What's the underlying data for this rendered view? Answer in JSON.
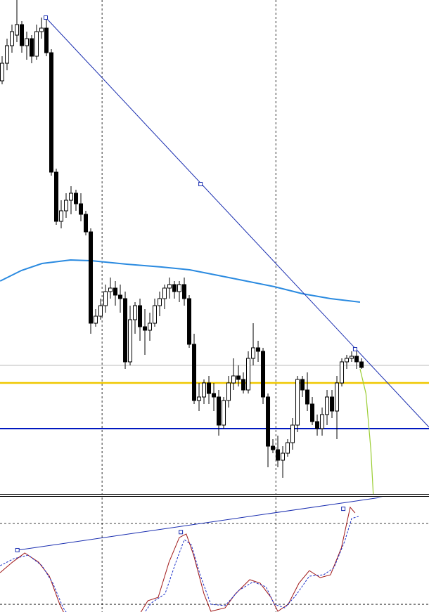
{
  "chart_data": [
    {
      "type": "candlestick",
      "xlim": [
        -0.43,
        86.71
      ],
      "ylim": [
        0,
        705
      ],
      "open": [
        590,
        615,
        640,
        655,
        670,
        640,
        650,
        625,
        660,
        665,
        630,
        460,
        390,
        405,
        420,
        430,
        415,
        400,
        375,
        245,
        255,
        270,
        290,
        295,
        285,
        280,
        190,
        250,
        270,
        240,
        235,
        245,
        270,
        280,
        295,
        300,
        290,
        300,
        280,
        215,
        135,
        140,
        160,
        145,
        140,
        100,
        135,
        160,
        170,
        165,
        150,
        195,
        210,
        205,
        140,
        70,
        65,
        50,
        60,
        75,
        100,
        165,
        150,
        130,
        105,
        95,
        115,
        140,
        120,
        160,
        190,
        195,
        198,
        190
      ],
      "high": [
        625,
        650,
        670,
        705,
        675,
        660,
        655,
        670,
        680,
        680,
        635,
        465,
        420,
        430,
        440,
        435,
        430,
        405,
        380,
        265,
        280,
        300,
        310,
        305,
        300,
        290,
        270,
        275,
        280,
        265,
        260,
        280,
        290,
        300,
        310,
        305,
        305,
        310,
        285,
        230,
        160,
        165,
        170,
        160,
        150,
        140,
        170,
        195,
        185,
        175,
        205,
        245,
        220,
        210,
        145,
        80,
        85,
        70,
        80,
        110,
        170,
        170,
        175,
        140,
        115,
        125,
        150,
        150,
        170,
        195,
        200,
        205,
        210,
        195
      ],
      "low": [
        585,
        605,
        630,
        645,
        630,
        620,
        615,
        620,
        650,
        625,
        455,
        385,
        380,
        395,
        400,
        405,
        390,
        370,
        230,
        240,
        250,
        260,
        280,
        270,
        260,
        180,
        185,
        230,
        220,
        200,
        220,
        240,
        255,
        265,
        280,
        280,
        275,
        270,
        210,
        130,
        120,
        130,
        130,
        120,
        85,
        95,
        125,
        150,
        155,
        145,
        145,
        185,
        190,
        130,
        40,
        60,
        40,
        25,
        55,
        65,
        90,
        140,
        120,
        100,
        85,
        85,
        100,
        110,
        80,
        155,
        180,
        190,
        180,
        180
      ],
      "close": [
        615,
        640,
        660,
        670,
        640,
        650,
        625,
        660,
        665,
        630,
        460,
        390,
        405,
        420,
        430,
        415,
        400,
        375,
        245,
        255,
        270,
        290,
        295,
        285,
        280,
        190,
        250,
        270,
        240,
        235,
        245,
        270,
        280,
        295,
        300,
        290,
        300,
        280,
        215,
        135,
        140,
        160,
        145,
        140,
        100,
        135,
        160,
        170,
        165,
        150,
        195,
        210,
        205,
        140,
        70,
        65,
        50,
        60,
        75,
        100,
        165,
        150,
        130,
        105,
        95,
        115,
        140,
        120,
        160,
        190,
        195,
        198,
        190,
        182
      ],
      "ma": {
        "color": "#2a8ae0",
        "x": [
          -0.4,
          3.9,
          8.1,
          13.9,
          18.1,
          25.3,
          32.4,
          38.1,
          43.9,
          49.6,
          55.3,
          61,
          66.7,
          72.7
        ],
        "values": [
          305,
          320,
          330,
          335,
          334,
          329,
          325,
          321,
          313,
          305,
          297,
          287,
          280,
          275
        ]
      },
      "trendlines": [
        {
          "color": "#1a2eb0",
          "x": [
            8.86,
            86.71
          ],
          "values": [
            680,
            97
          ],
          "anchors": {
            "x": [
              8.86,
              40.3,
              71.7
            ],
            "values": [
              680,
              443,
              208
            ]
          }
        }
      ],
      "hlines": [
        {
          "value": 185,
          "color": "#bbbbbb",
          "width": 1
        },
        {
          "value": 160,
          "color": "#f0c800",
          "width": 2.5
        },
        {
          "value": 95,
          "color": "#0018c0",
          "width": 2
        }
      ],
      "vlines": [
        20.3,
        55.6
      ],
      "forecast": {
        "color": "#9acd32",
        "x": [
          72.7,
          73.9,
          74.9,
          75.4
        ],
        "values": [
          180,
          145,
          65,
          0
        ]
      }
    },
    {
      "type": "line",
      "xlim": [
        -0.43,
        86.71
      ],
      "ylim": [
        14.3,
        99.3
      ],
      "levels": [
        80,
        20
      ],
      "series": [
        {
          "color": "#a01818",
          "dashed": false,
          "x": [
            -0.4,
            2.1,
            4.6,
            7.4,
            9.6,
            11.7,
            13.1,
            27.4,
            29.6,
            31.7,
            33.9,
            36,
            37.4,
            38.9,
            41,
            42.4,
            45.3,
            47.4,
            50.3,
            52.4,
            54.6,
            56,
            58.1,
            60.3,
            62.4,
            64.6,
            66.7,
            68.9,
            70.7,
            71.7
          ],
          "values": [
            43.5,
            51.3,
            58.1,
            51.3,
            40.9,
            20,
            9.6,
            9.6,
            22.6,
            25.2,
            51.3,
            69.6,
            72.2,
            56.5,
            27.8,
            14.8,
            17.4,
            27.8,
            38.3,
            35.7,
            25.2,
            14.8,
            20,
            35.7,
            45,
            39.8,
            41.9,
            61.7,
            92,
            87.8
          ]
        },
        {
          "color": "#1a2ec8",
          "dashed": true,
          "x": [
            -0.4,
            2.4,
            5.3,
            8.1,
            10.3,
            12.4,
            13.9,
            28.1,
            30.3,
            33.1,
            35.3,
            37,
            38.4,
            40.3,
            42.4,
            45.3,
            48.1,
            51,
            53.6,
            55.3,
            57.4,
            59.6,
            62.4,
            65.3,
            67.4,
            69.6,
            71,
            72.4
          ],
          "values": [
            48.7,
            53.9,
            56.5,
            48.7,
            35.7,
            17.4,
            9.6,
            9.6,
            21,
            27.8,
            51.3,
            68,
            64.4,
            40.9,
            20,
            19,
            30.4,
            36.7,
            33,
            20,
            17.4,
            26.3,
            40.9,
            41.9,
            47.1,
            67,
            83.7,
            85.2
          ]
        }
      ],
      "trendlines": [
        {
          "color": "#1a2eb0",
          "x": [
            3.1,
            78.1
          ],
          "values": [
            60.2,
            100
          ],
          "anchors": {
            "x": [
              3.1,
              36.3,
              69.3
            ],
            "values": [
              60.2,
              73.6,
              90.9
            ]
          }
        }
      ],
      "vlines": [
        20.3,
        55.6
      ]
    }
  ]
}
